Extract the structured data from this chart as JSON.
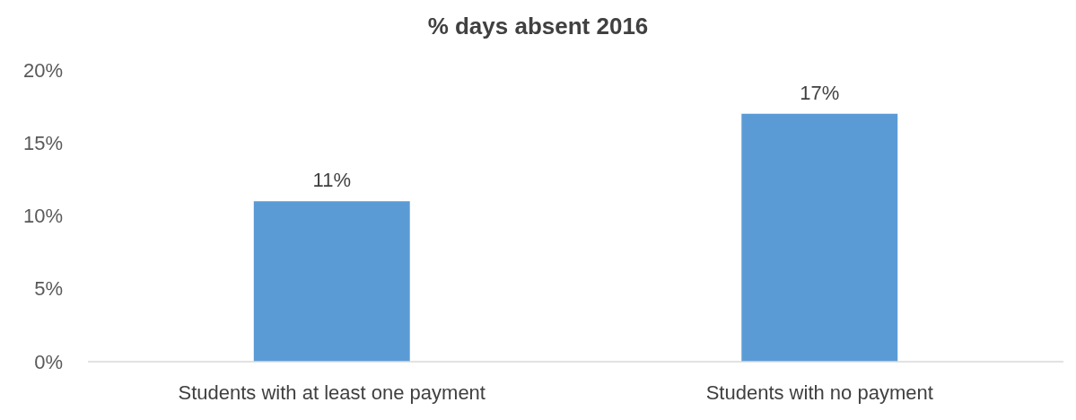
{
  "chart_data": {
    "type": "bar",
    "title": "% days absent 2016",
    "categories": [
      "Students with at least one payment",
      "Students with no payment"
    ],
    "values": [
      11,
      17
    ],
    "color": "#5b9bd5",
    "ylim": [
      0,
      20
    ],
    "yticks": [
      {
        "value": 0,
        "label": "0%"
      },
      {
        "value": 5,
        "label": "5%"
      },
      {
        "value": 10,
        "label": "10%"
      },
      {
        "value": 15,
        "label": "15%"
      },
      {
        "value": 20,
        "label": "20%"
      }
    ],
    "data_labels": true,
    "value_labels": [
      "11%",
      "17%"
    ]
  }
}
